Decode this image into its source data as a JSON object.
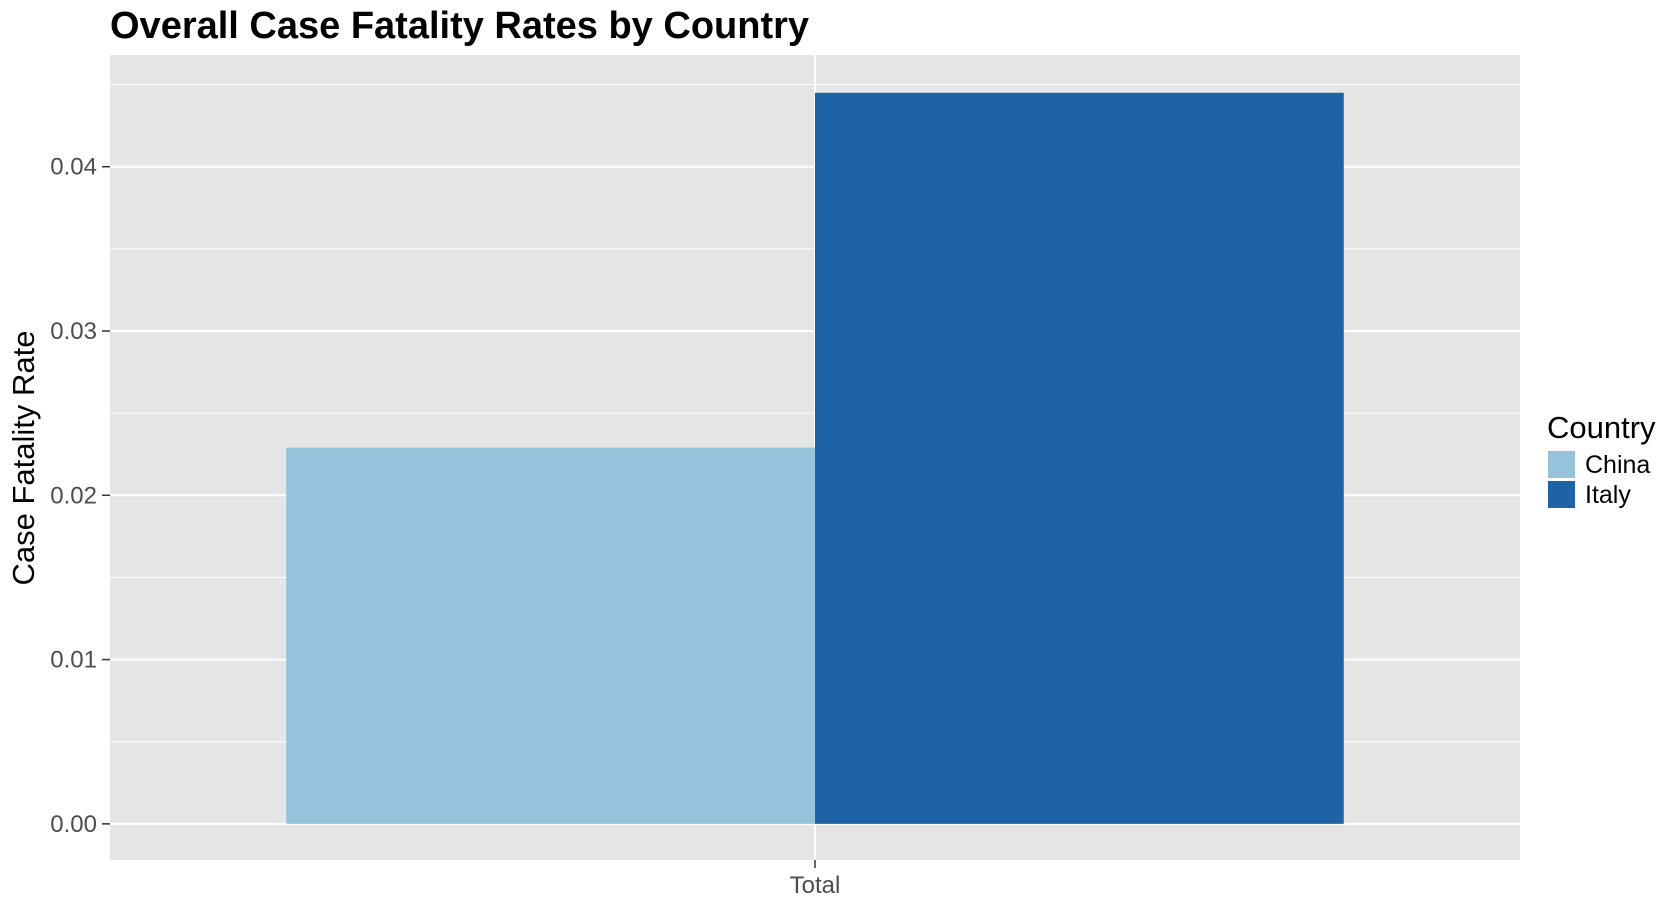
{
  "chart_data": {
    "type": "bar",
    "title": "Overall Case Fatality Rates by Country",
    "xlabel": "",
    "ylabel": "Case Fatality Rate",
    "categories": [
      "Total"
    ],
    "series": [
      {
        "name": "China",
        "values": [
          0.0229
        ],
        "color": "#96C2DC"
      },
      {
        "name": "Italy",
        "values": [
          0.0445
        ],
        "color": "#1E63A5"
      }
    ],
    "ylim": [
      -0.0022,
      0.0468
    ],
    "y_ticks": [
      0.0,
      0.01,
      0.02,
      0.03,
      0.04
    ],
    "y_tick_labels": [
      "0.00",
      "0.01",
      "0.02",
      "0.03",
      "0.04"
    ],
    "grid": true,
    "legend": {
      "title": "Country",
      "placement": "right",
      "items": [
        "China",
        "Italy"
      ]
    },
    "colors": {
      "panel_background": "#E5E5E5",
      "grid_line": "#FFFFFF",
      "tick_label": "#4D4D4D"
    }
  }
}
